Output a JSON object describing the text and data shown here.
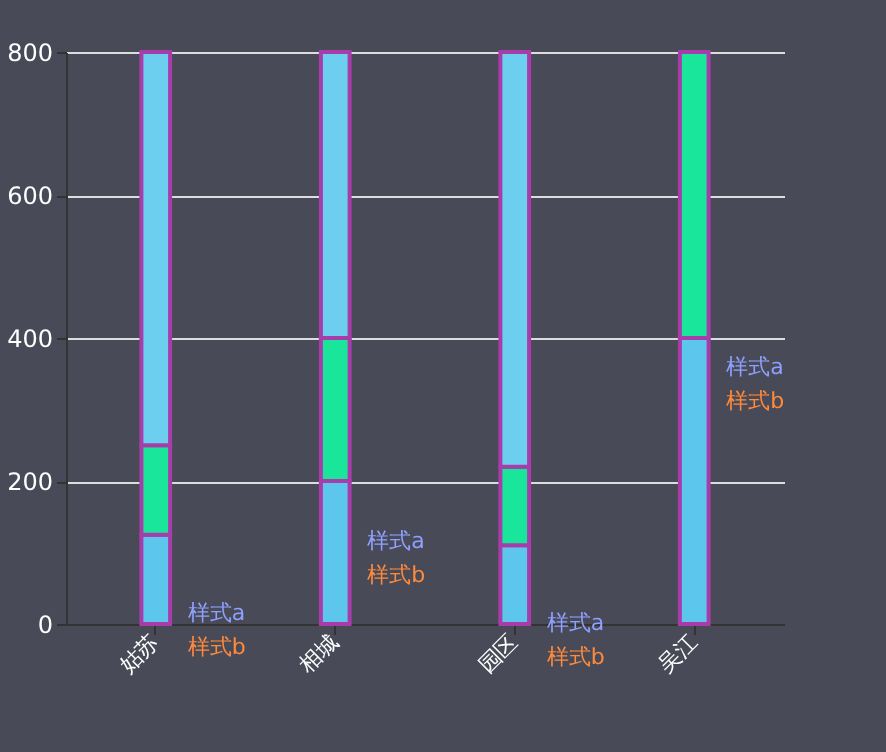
{
  "chart_data": {
    "type": "bar",
    "stacked": true,
    "categories": [
      "姑苏",
      "相城",
      "园区",
      "吴江"
    ],
    "series": [
      {
        "color": "#5cc6ec",
        "values": [
          125,
          200,
          110,
          400
        ]
      },
      {
        "color": "#19e69a",
        "values": [
          125,
          200,
          110,
          400
        ]
      },
      {
        "color": "#6ccff0",
        "values": [
          550,
          400,
          580,
          null
        ]
      }
    ],
    "ylim": [
      0,
      800
    ],
    "yticks": [
      0,
      200,
      400,
      600,
      800
    ],
    "grid": "y",
    "annotations": [
      "样式a",
      "样式b",
      "样式a",
      "样式b",
      "样式a",
      "样式b",
      "样式a",
      "样式b"
    ]
  }
}
